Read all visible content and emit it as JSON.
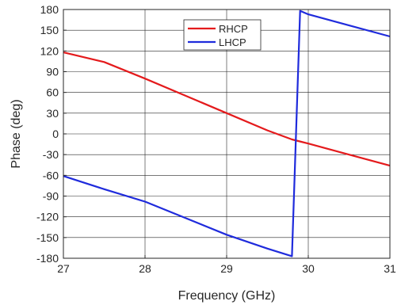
{
  "chart_data": {
    "type": "line",
    "title": "",
    "xlabel": "Frequency (GHz)",
    "ylabel": "Phase (deg)",
    "xlim": [
      27,
      31
    ],
    "ylim": [
      -180,
      180
    ],
    "x_ticks": [
      "27",
      "28",
      "29",
      "30",
      "31"
    ],
    "y_ticks": [
      "180",
      "150",
      "120",
      "90",
      "60",
      "30",
      "0",
      "-30",
      "-60",
      "-90",
      "-120",
      "-150",
      "-180"
    ],
    "grid": true,
    "legend_position": "top-center",
    "series": [
      {
        "name": "RHCP",
        "color": "#e41a1c",
        "points": [
          [
            27,
            118
          ],
          [
            27.5,
            104
          ],
          [
            28,
            80
          ],
          [
            28.5,
            55
          ],
          [
            29,
            30
          ],
          [
            29.5,
            5
          ],
          [
            29.8,
            -8
          ],
          [
            30,
            -14
          ],
          [
            30.5,
            -30
          ],
          [
            31,
            -46
          ]
        ]
      },
      {
        "name": "LHCP",
        "color": "#1f2bdc",
        "points": [
          [
            27,
            -61
          ],
          [
            27.5,
            -80
          ],
          [
            28,
            -98
          ],
          [
            28.5,
            -122
          ],
          [
            29,
            -146
          ],
          [
            29.5,
            -166
          ],
          [
            29.8,
            -177
          ],
          [
            29.9,
            178
          ],
          [
            30,
            173
          ],
          [
            30.5,
            157
          ],
          [
            31,
            141
          ]
        ]
      }
    ]
  }
}
